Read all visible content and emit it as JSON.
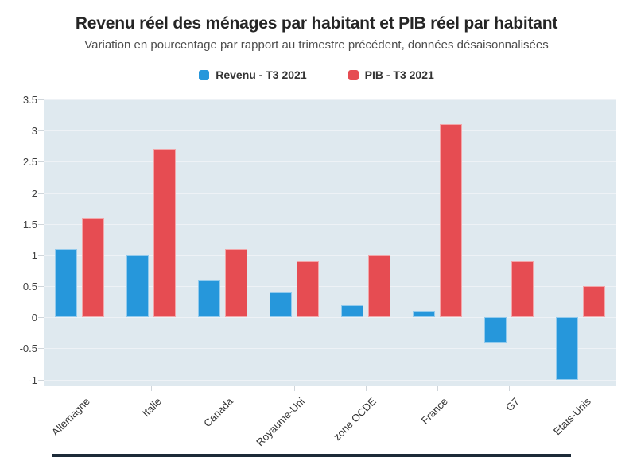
{
  "header": {
    "title": "Revenu réel des ménages par habitant et PIB réel par habitant",
    "subtitle": "Variation en pourcentage par rapport au trimestre précédent, données désaisonnalisées"
  },
  "legend": [
    {
      "label": "Revenu - T3 2021",
      "color": "#2697db"
    },
    {
      "label": "PIB - T3 2021",
      "color": "#e64c52"
    }
  ],
  "chart_data": {
    "type": "bar",
    "title": "Revenu réel des ménages par habitant et PIB réel par habitant",
    "subtitle": "Variation en pourcentage par rapport au trimestre précédent, données désaisonnalisées",
    "categories": [
      "Allemagne",
      "Italie",
      "Canada",
      "Royaume-Uni",
      "zone OCDE",
      "France",
      "G7",
      "Etats-Unis"
    ],
    "series": [
      {
        "name": "Revenu - T3 2021",
        "color": "#2697db",
        "values": [
          1.1,
          1.0,
          0.6,
          0.4,
          0.2,
          0.1,
          -0.4,
          -1.0
        ]
      },
      {
        "name": "PIB - T3 2021",
        "color": "#e64c52",
        "values": [
          1.6,
          2.7,
          1.1,
          0.9,
          1.0,
          3.1,
          0.9,
          0.5
        ]
      }
    ],
    "xlabel": "",
    "ylabel": "",
    "ylim": [
      -1.1,
      3.5
    ],
    "yticks": [
      3.5,
      3,
      2.5,
      2,
      1.5,
      1,
      0.5,
      0,
      -0.5,
      -1
    ],
    "grid": true,
    "legend_position": "top",
    "plot_bg": "#dfe9ef"
  }
}
